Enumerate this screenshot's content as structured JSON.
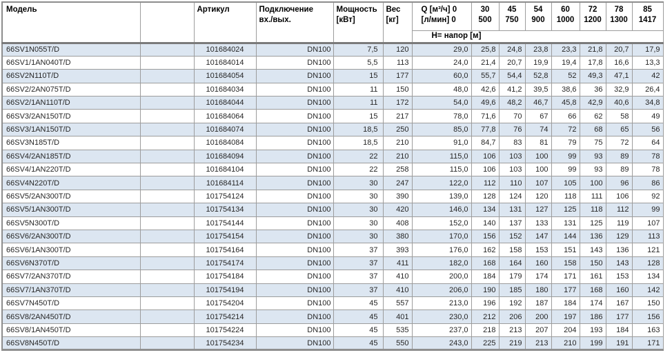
{
  "table": {
    "headers": {
      "model": "Модель",
      "spacer": "",
      "article": "Артикул",
      "connection": "Подключение\nвх./вых.",
      "power": "Мощность\n[кВт]",
      "weight": "Вес\n[кг]",
      "flow": "Q [м³/ч] 0\n[л/мин] 0",
      "head_row": "Н= напор [м]"
    },
    "flow_columns": [
      "30\n500",
      "45\n750",
      "54\n900",
      "60\n1000",
      "72\n1200",
      "78\n1300",
      "85\n1417"
    ],
    "rows": [
      {
        "model": "66SV1N055T/D",
        "article": "101684024",
        "connection": "DN100",
        "power": "7,5",
        "weight": "120",
        "head": [
          "29,0",
          "25,8",
          "24,8",
          "23,8",
          "23,3",
          "21,8",
          "20,7",
          "17,9"
        ]
      },
      {
        "model": "66SV1/1AN040T/D",
        "article": "101684014",
        "connection": "DN100",
        "power": "5,5",
        "weight": "113",
        "head": [
          "24,0",
          "21,4",
          "20,7",
          "19,9",
          "19,4",
          "17,8",
          "16,6",
          "13,3"
        ]
      },
      {
        "model": "66SV2N110T/D",
        "article": "101684054",
        "connection": "DN100",
        "power": "15",
        "weight": "177",
        "head": [
          "60,0",
          "55,7",
          "54,4",
          "52,8",
          "52",
          "49,3",
          "47,1",
          "42"
        ]
      },
      {
        "model": "66SV2/2AN075T/D",
        "article": "101684034",
        "connection": "DN100",
        "power": "11",
        "weight": "150",
        "head": [
          "48,0",
          "42,6",
          "41,2",
          "39,5",
          "38,6",
          "36",
          "32,9",
          "26,4"
        ]
      },
      {
        "model": "66SV2/1AN110T/D",
        "article": "101684044",
        "connection": "DN100",
        "power": "11",
        "weight": "172",
        "head": [
          "54,0",
          "49,6",
          "48,2",
          "46,7",
          "45,8",
          "42,9",
          "40,6",
          "34,8"
        ]
      },
      {
        "model": "66SV3/2AN150T/D",
        "article": "101684064",
        "connection": "DN100",
        "power": "15",
        "weight": "217",
        "head": [
          "78,0",
          "71,6",
          "70",
          "67",
          "66",
          "62",
          "58",
          "49"
        ]
      },
      {
        "model": "66SV3/1AN150T/D",
        "article": "101684074",
        "connection": "DN100",
        "power": "18,5",
        "weight": "250",
        "head": [
          "85,0",
          "77,8",
          "76",
          "74",
          "72",
          "68",
          "65",
          "56"
        ]
      },
      {
        "model": "66SV3N185T/D",
        "article": "101684084",
        "connection": "DN100",
        "power": "18,5",
        "weight": "210",
        "head": [
          "91,0",
          "84,7",
          "83",
          "81",
          "79",
          "75",
          "72",
          "64"
        ]
      },
      {
        "model": "66SV4/2AN185T/D",
        "article": "101684094",
        "connection": "DN100",
        "power": "22",
        "weight": "210",
        "head": [
          "115,0",
          "106",
          "103",
          "100",
          "99",
          "93",
          "89",
          "78"
        ]
      },
      {
        "model": "66SV4/1AN220T/D",
        "article": "101684104",
        "connection": "DN100",
        "power": "22",
        "weight": "258",
        "head": [
          "115,0",
          "106",
          "103",
          "100",
          "99",
          "93",
          "89",
          "78"
        ]
      },
      {
        "model": "66SV4N220T/D",
        "article": "101684114",
        "connection": "DN100",
        "power": "30",
        "weight": "247",
        "head": [
          "122,0",
          "112",
          "110",
          "107",
          "105",
          "100",
          "96",
          "86"
        ]
      },
      {
        "model": "66SV5/2AN300T/D",
        "article": "101754124",
        "connection": "DN100",
        "power": "30",
        "weight": "390",
        "head": [
          "139,0",
          "128",
          "124",
          "120",
          "118",
          "111",
          "106",
          "92"
        ]
      },
      {
        "model": "66SV5/1AN300T/D",
        "article": "101754134",
        "connection": "DN100",
        "power": "30",
        "weight": "420",
        "head": [
          "146,0",
          "134",
          "131",
          "127",
          "125",
          "118",
          "112",
          "99"
        ]
      },
      {
        "model": "66SV5N300T/D",
        "article": "101754144",
        "connection": "DN100",
        "power": "30",
        "weight": "408",
        "head": [
          "152,0",
          "140",
          "137",
          "133",
          "131",
          "125",
          "119",
          "107"
        ]
      },
      {
        "model": "66SV6/2AN300T/D",
        "article": "101754154",
        "connection": "DN100",
        "power": "30",
        "weight": "380",
        "head": [
          "170,0",
          "156",
          "152",
          "147",
          "144",
          "136",
          "129",
          "113"
        ]
      },
      {
        "model": "66SV6/1AN300T/D",
        "article": "101754164",
        "connection": "DN100",
        "power": "37",
        "weight": "393",
        "head": [
          "176,0",
          "162",
          "158",
          "153",
          "151",
          "143",
          "136",
          "121"
        ]
      },
      {
        "model": "66SV6N370T/D",
        "article": "101754174",
        "connection": "DN100",
        "power": "37",
        "weight": "411",
        "head": [
          "182,0",
          "168",
          "164",
          "160",
          "158",
          "150",
          "143",
          "128"
        ]
      },
      {
        "model": "66SV7/2AN370T/D",
        "article": "101754184",
        "connection": "DN100",
        "power": "37",
        "weight": "410",
        "head": [
          "200,0",
          "184",
          "179",
          "174",
          "171",
          "161",
          "153",
          "134"
        ]
      },
      {
        "model": "66SV7/1AN370T/D",
        "article": "101754194",
        "connection": "DN100",
        "power": "37",
        "weight": "410",
        "head": [
          "206,0",
          "190",
          "185",
          "180",
          "177",
          "168",
          "160",
          "142"
        ]
      },
      {
        "model": "66SV7N450T/D",
        "article": "101754204",
        "connection": "DN100",
        "power": "45",
        "weight": "557",
        "head": [
          "213,0",
          "196",
          "192",
          "187",
          "184",
          "174",
          "167",
          "150"
        ]
      },
      {
        "model": "66SV8/2AN450T/D",
        "article": "101754214",
        "connection": "DN100",
        "power": "45",
        "weight": "401",
        "head": [
          "230,0",
          "212",
          "206",
          "200",
          "197",
          "186",
          "177",
          "156"
        ]
      },
      {
        "model": "66SV8/1AN450T/D",
        "article": "101754224",
        "connection": "DN100",
        "power": "45",
        "weight": "535",
        "head": [
          "237,0",
          "218",
          "213",
          "207",
          "204",
          "193",
          "184",
          "163"
        ]
      },
      {
        "model": "66SV8N450T/D",
        "article": "101754234",
        "connection": "DN100",
        "power": "45",
        "weight": "550",
        "head": [
          "243,0",
          "225",
          "219",
          "213",
          "210",
          "199",
          "191",
          "171"
        ]
      }
    ]
  },
  "colors": {
    "row_stripe": "#dce6f1",
    "grid_line": "#9c9c9c",
    "header_rule": "#7a7a7a",
    "bottom_rule": "#8f8f8f",
    "text": "#262626"
  }
}
